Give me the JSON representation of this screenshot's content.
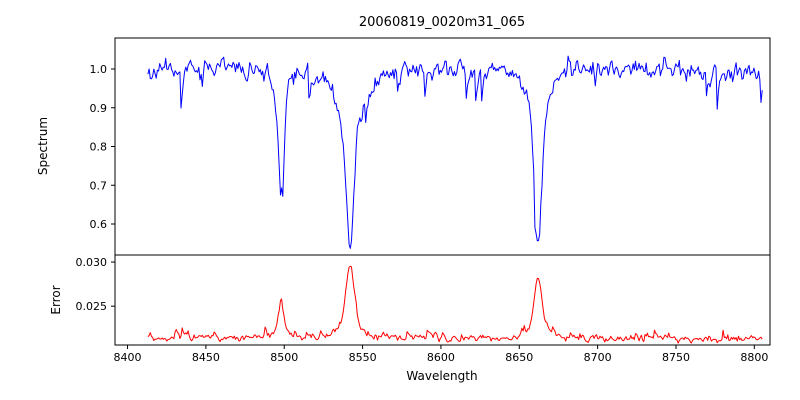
{
  "chart_data": {
    "type": "line",
    "title": "20060819_0020m31_065",
    "xlabel": "Wavelength",
    "grid": false,
    "legend": false,
    "xlim": [
      8392,
      8810
    ],
    "xticks": [
      8400,
      8450,
      8500,
      8550,
      8600,
      8650,
      8700,
      8750,
      8800
    ],
    "xtick_labels": [
      "8400",
      "8450",
      "8500",
      "8550",
      "8600",
      "8650",
      "8700",
      "8750",
      "8800"
    ],
    "x_start": 8413,
    "x_end": 8805,
    "n_points": 520,
    "axis_color": "#000000",
    "background_color": "#ffffff",
    "subplots": [
      {
        "name": "spectrum",
        "ylabel": "Spectrum",
        "ylim": [
          0.52,
          1.08
        ],
        "yticks": [
          0.6,
          0.7,
          0.8,
          0.9,
          1.0
        ],
        "ytick_labels": [
          "0.6",
          "0.7",
          "0.8",
          "0.9",
          "1.0"
        ],
        "series": {
          "name": "spectrum-flux",
          "color": "#0000ff",
          "seed": 11,
          "baseline": 0.997,
          "noise_sigma": 0.012,
          "wave_amp": 0.005,
          "spike_rate": 0.035,
          "spike_min": 0.02,
          "spike_span": 0.07,
          "spike_sign": -1,
          "features": [
            {
              "center": 8498.0,
              "amplitude": -0.31,
              "core_sigma": 1.8,
              "wing_sigma": 5.5,
              "wing_frac": 0.2,
              "min_value": 0.69
            },
            {
              "center": 8542.1,
              "amplitude": -0.45,
              "core_sigma": 2.6,
              "wing_sigma": 9.0,
              "wing_frac": 0.3,
              "min_value": 0.54
            },
            {
              "center": 8662.1,
              "amplitude": -0.44,
              "core_sigma": 2.2,
              "wing_sigma": 8.0,
              "wing_frac": 0.28,
              "min_value": 0.56
            }
          ]
        }
      },
      {
        "name": "error",
        "ylabel": "Error",
        "ylim": [
          0.0206,
          0.0308
        ],
        "yticks": [
          0.025,
          0.03
        ],
        "ytick_labels": [
          "0.025",
          "0.030"
        ],
        "series": {
          "name": "error-level",
          "color": "#ff0000",
          "seed": 99,
          "baseline": 0.0214,
          "noise_sigma": 0.00022,
          "wave_amp": 0.00012,
          "spike_rate": 0.05,
          "spike_min": 0.0002,
          "spike_span": 0.0007,
          "spike_sign": 1,
          "features": [
            {
              "center": 8498.0,
              "amplitude": 0.0042,
              "core_sigma": 1.7,
              "wing_sigma": 5.0,
              "wing_frac": 0.2,
              "peak_value": 0.0256
            },
            {
              "center": 8542.1,
              "amplitude": 0.0084,
              "core_sigma": 2.6,
              "wing_sigma": 7.0,
              "wing_frac": 0.25,
              "peak_value": 0.0298
            },
            {
              "center": 8662.1,
              "amplitude": 0.0068,
              "core_sigma": 2.2,
              "wing_sigma": 6.0,
              "wing_frac": 0.22,
              "peak_value": 0.0284
            }
          ]
        }
      }
    ]
  }
}
